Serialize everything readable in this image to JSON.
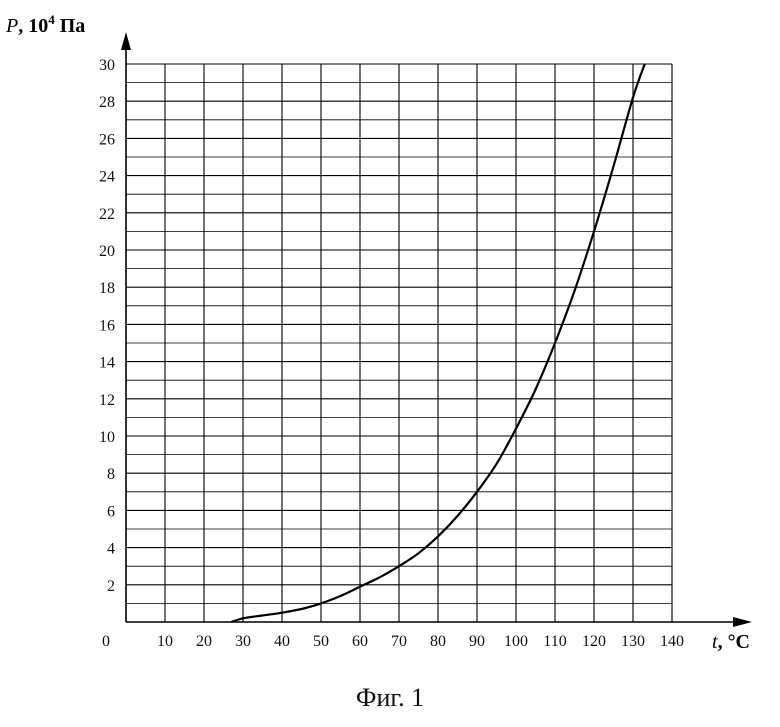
{
  "caption": "Фиг. 1",
  "chart_data": {
    "type": "line",
    "title": "",
    "xlabel": {
      "var": "t",
      "unit": ", °C"
    },
    "ylabel": {
      "var": "P",
      "unit": ", 10",
      "sup": "4",
      "unit2": " Па"
    },
    "xlim": [
      0,
      140
    ],
    "ylim": [
      0,
      30
    ],
    "x_ticks": [
      0,
      10,
      20,
      30,
      40,
      50,
      60,
      70,
      80,
      90,
      100,
      110,
      120,
      130,
      140
    ],
    "y_ticks": [
      2,
      4,
      6,
      8,
      10,
      12,
      14,
      16,
      18,
      20,
      22,
      24,
      26,
      28,
      30
    ],
    "grid": true,
    "series": [
      {
        "x": [
          27,
          30,
          35,
          40,
          45,
          50,
          55,
          60,
          65,
          70,
          75,
          80,
          85,
          90,
          95,
          100,
          105,
          110,
          115,
          120,
          125,
          130,
          133
        ],
        "y": [
          0.0,
          0.2,
          0.35,
          0.5,
          0.7,
          1.0,
          1.4,
          1.9,
          2.4,
          3.0,
          3.7,
          4.6,
          5.7,
          7.0,
          8.5,
          10.4,
          12.5,
          15.0,
          17.8,
          21.0,
          24.5,
          28.2,
          30.0
        ]
      }
    ]
  }
}
